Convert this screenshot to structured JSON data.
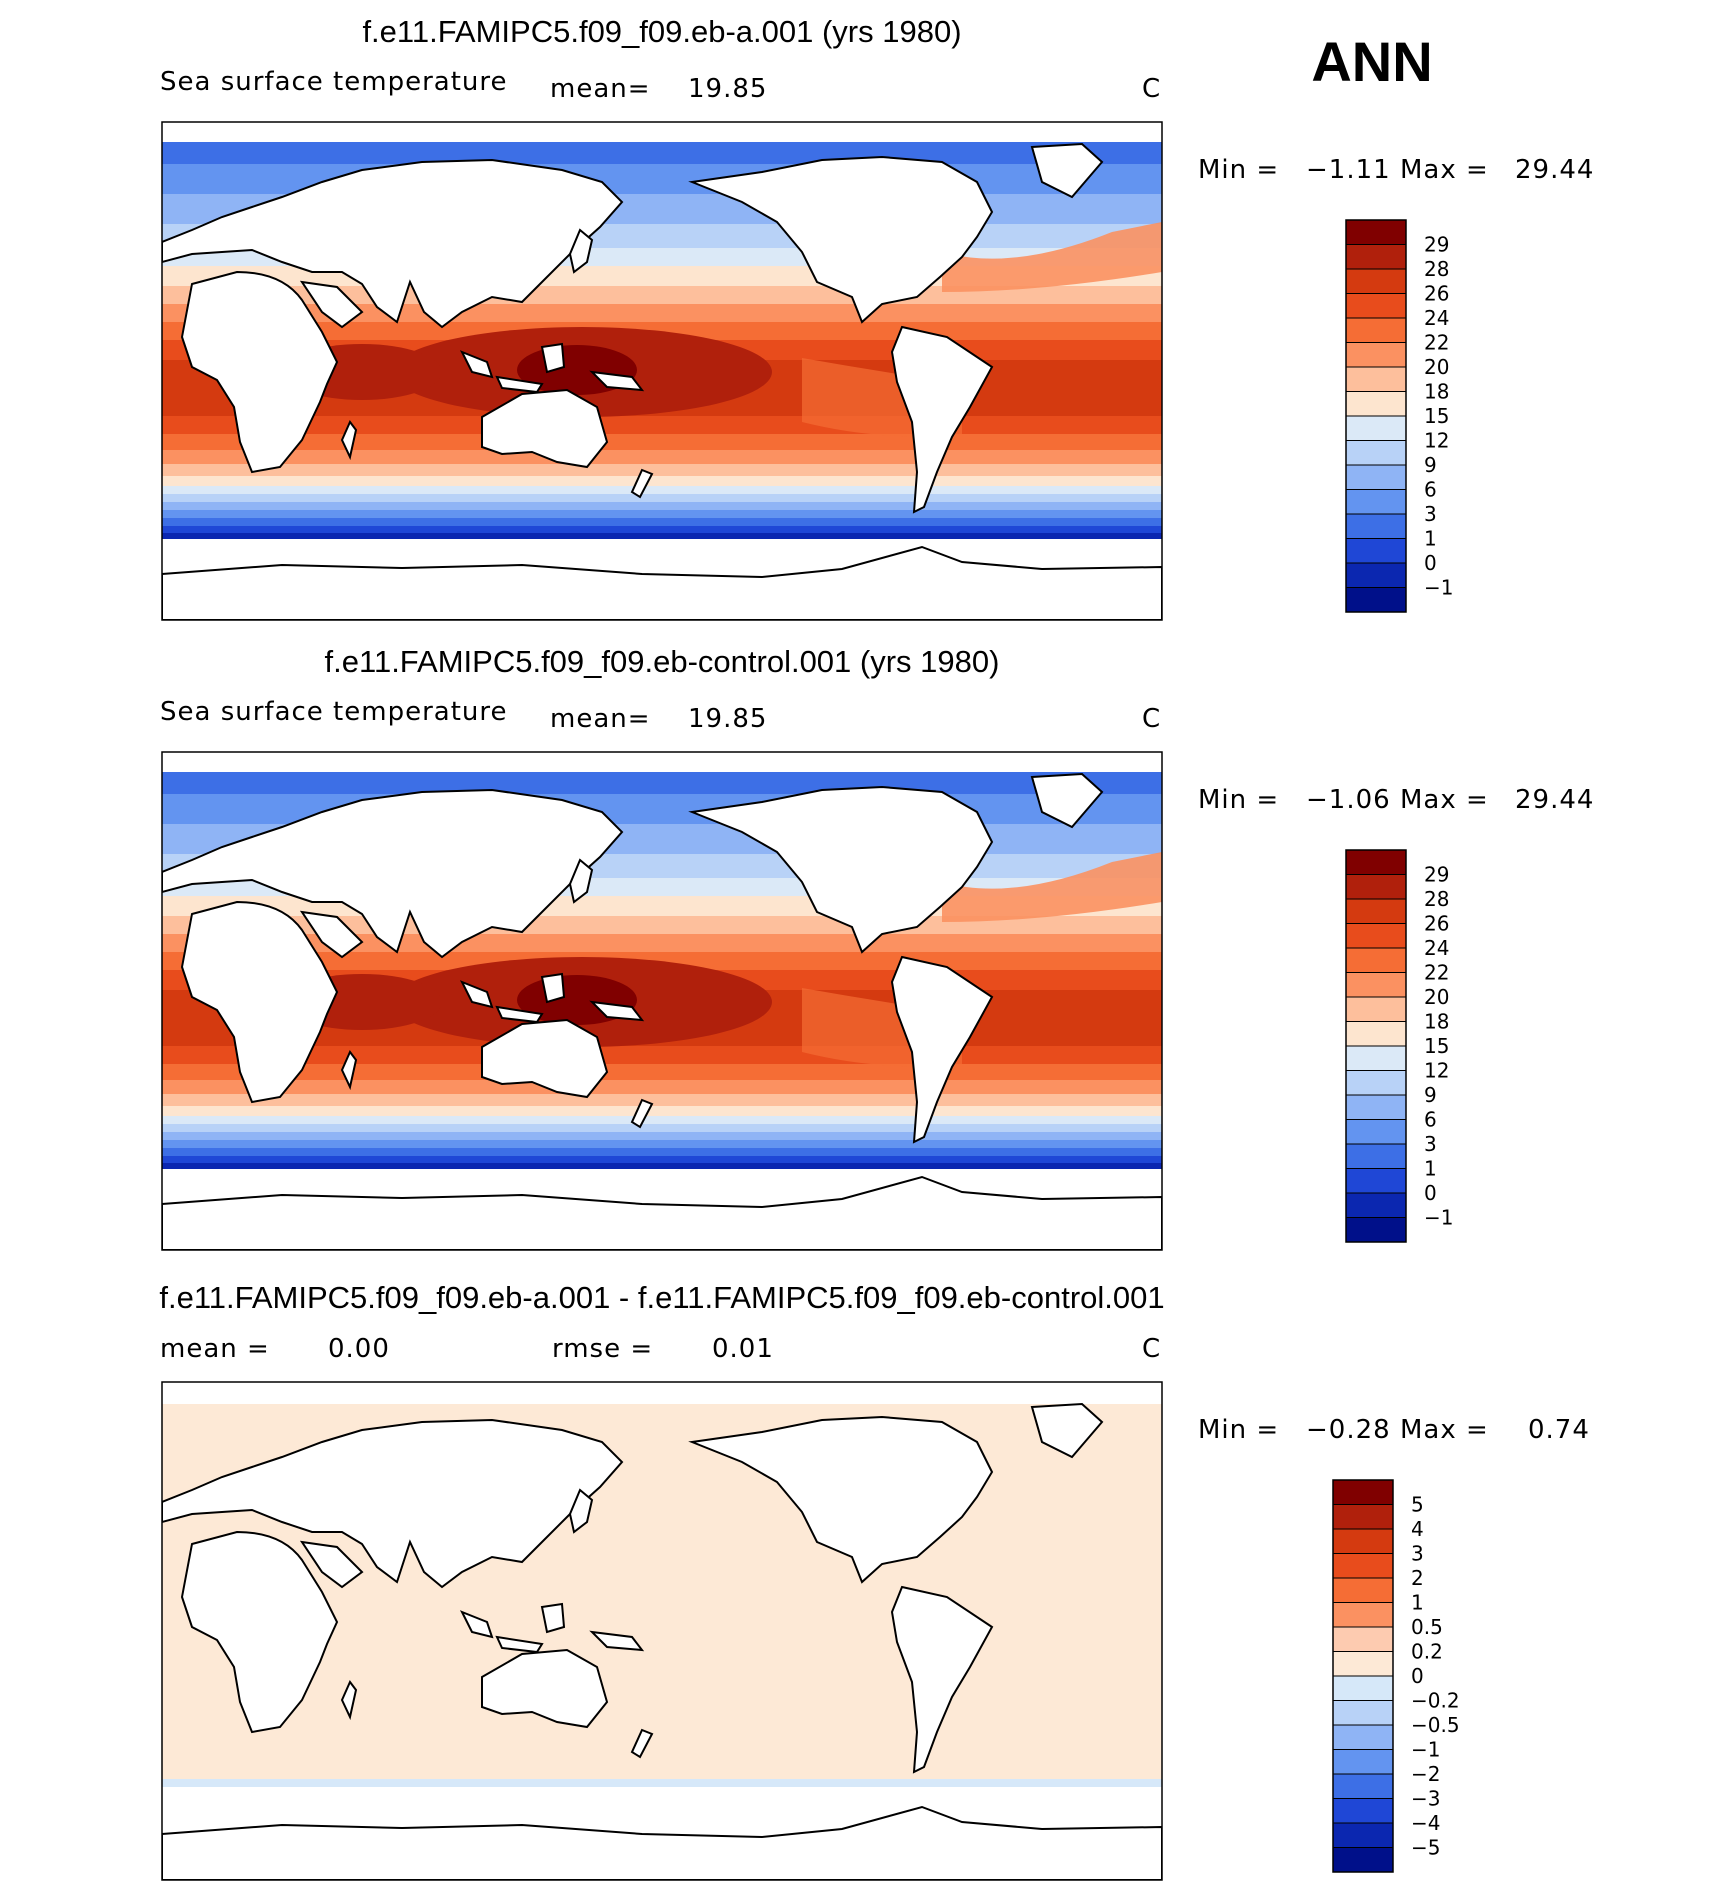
{
  "season": "ANN",
  "units_mark": "C",
  "panels": [
    {
      "title": "f.e11.FAMIPC5.f09_f09.eb-a.001 (yrs 1980)",
      "variable": "Sea surface temperature",
      "stat_label": "mean=",
      "stat_value": "19.85",
      "units": "C",
      "min_label": "Min =",
      "min_value": "−1.11",
      "max_label": "Max =",
      "max_value": "29.44",
      "colorbar": {
        "labels": [
          "29",
          "28",
          "26",
          "24",
          "22",
          "20",
          "18",
          "15",
          "12",
          "9",
          "6",
          "3",
          "1",
          "0",
          "−1"
        ],
        "colors": [
          "#800000",
          "#b0200c",
          "#d43a10",
          "#e84c1c",
          "#f56d35",
          "#fb9161",
          "#fdbf9c",
          "#fde5cf",
          "#dbe9f7",
          "#b8d2f7",
          "#8fb4f5",
          "#6394f0",
          "#3d6fe6",
          "#1f47d6",
          "#0b27b0",
          "#00108a"
        ]
      },
      "chart_data": {
        "type": "heatmap",
        "title": "f.e11.FAMIPC5.f09_f09.eb-a.001 (yrs 1980)",
        "variable": "Sea surface temperature",
        "units": "C",
        "mean": 19.85,
        "min": -1.11,
        "max": 29.44,
        "levels": [
          -1,
          0,
          1,
          3,
          6,
          9,
          12,
          15,
          18,
          20,
          22,
          24,
          26,
          28,
          29
        ]
      }
    },
    {
      "title": "f.e11.FAMIPC5.f09_f09.eb-control.001 (yrs 1980)",
      "variable": "Sea surface temperature",
      "stat_label": "mean=",
      "stat_value": "19.85",
      "units": "C",
      "min_label": "Min =",
      "min_value": "−1.06",
      "max_label": "Max =",
      "max_value": "29.44",
      "colorbar": {
        "labels": [
          "29",
          "28",
          "26",
          "24",
          "22",
          "20",
          "18",
          "15",
          "12",
          "9",
          "6",
          "3",
          "1",
          "0",
          "−1"
        ],
        "colors": [
          "#800000",
          "#b0200c",
          "#d43a10",
          "#e84c1c",
          "#f56d35",
          "#fb9161",
          "#fdbf9c",
          "#fde5cf",
          "#dbe9f7",
          "#b8d2f7",
          "#8fb4f5",
          "#6394f0",
          "#3d6fe6",
          "#1f47d6",
          "#0b27b0",
          "#00108a"
        ]
      },
      "chart_data": {
        "type": "heatmap",
        "title": "f.e11.FAMIPC5.f09_f09.eb-control.001 (yrs 1980)",
        "variable": "Sea surface temperature",
        "units": "C",
        "mean": 19.85,
        "min": -1.06,
        "max": 29.44,
        "levels": [
          -1,
          0,
          1,
          3,
          6,
          9,
          12,
          15,
          18,
          20,
          22,
          24,
          26,
          28,
          29
        ]
      }
    },
    {
      "title": "f.e11.FAMIPC5.f09_f09.eb-a.001 - f.e11.FAMIPC5.f09_f09.eb-control.001",
      "mean_label": "mean =",
      "mean_value": "0.00",
      "rmse_label": "rmse =",
      "rmse_value": "0.01",
      "units": "C",
      "min_label": "Min =",
      "min_value": "−0.28",
      "max_label": "Max =",
      "max_value": "0.74",
      "colorbar": {
        "labels": [
          "5",
          "4",
          "3",
          "2",
          "1",
          "0.5",
          "0.2",
          "0",
          "−0.2",
          "−0.5",
          "−1",
          "−2",
          "−3",
          "−4",
          "−5"
        ],
        "colors": [
          "#800000",
          "#b0200c",
          "#d43a10",
          "#e84c1c",
          "#f56d35",
          "#fb9161",
          "#fdcbb0",
          "#fde9d6",
          "#d6e8f9",
          "#b8d2f7",
          "#8fb4f5",
          "#6394f0",
          "#3d6fe6",
          "#1f47d6",
          "#0b27b0",
          "#00108a"
        ]
      },
      "chart_data": {
        "type": "heatmap",
        "title": "f.e11.FAMIPC5.f09_f09.eb-a.001 - f.e11.FAMIPC5.f09_f09.eb-control.001",
        "units": "C",
        "mean": 0.0,
        "rmse": 0.01,
        "min": -0.28,
        "max": 0.74,
        "levels": [
          -5,
          -4,
          -3,
          -2,
          -1,
          -0.5,
          -0.2,
          0,
          0.2,
          0.5,
          1,
          2,
          3,
          4,
          5
        ]
      }
    }
  ]
}
